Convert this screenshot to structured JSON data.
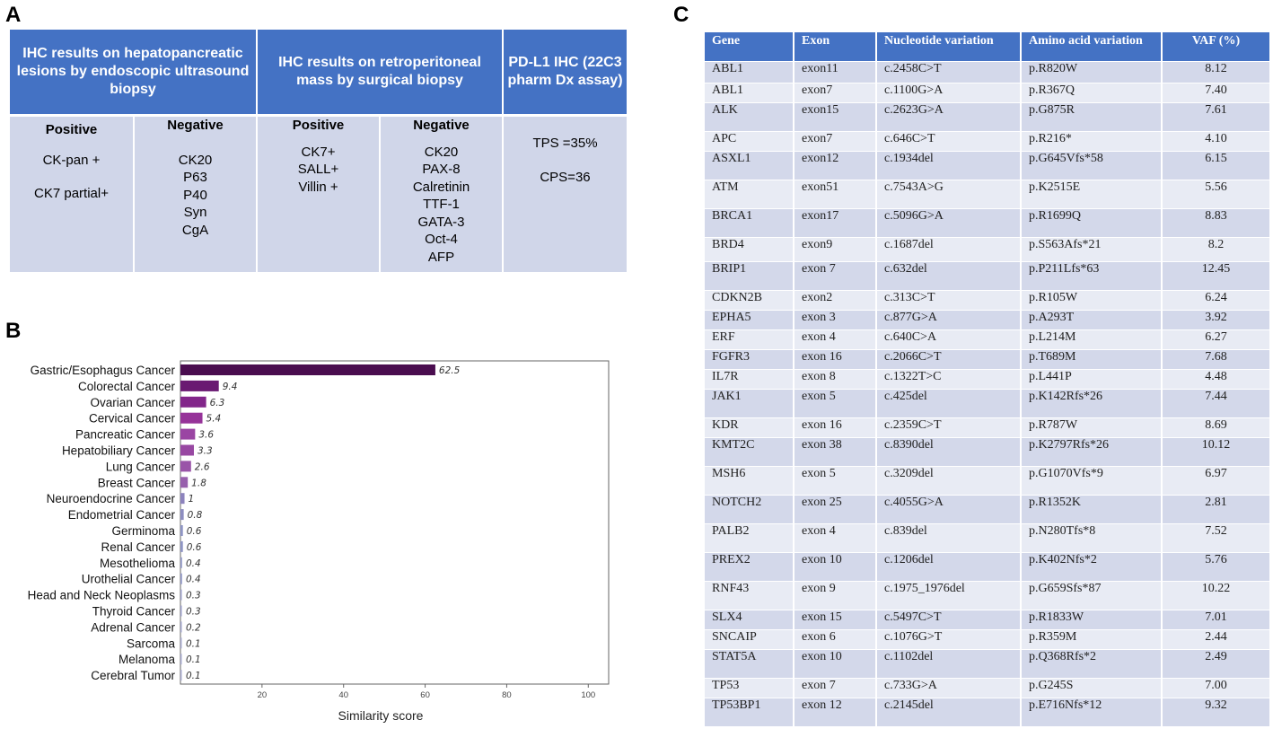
{
  "panel_letters": {
    "a": "A",
    "b": "B",
    "c": "C"
  },
  "panelA": {
    "headers": [
      "IHC results on hepatopancreatic lesions by endoscopic ultrasound biopsy",
      "IHC results on retroperitoneal mass by surgical biopsy",
      "PD-L1 IHC (22C3 pharm Dx assay)"
    ],
    "columns": [
      {
        "title": "Positive",
        "items": [
          "CK-pan +",
          "CK7 partial+"
        ]
      },
      {
        "title": "Negative",
        "items": [
          "CK20",
          "P63",
          "P40",
          "Syn",
          "CgA"
        ]
      },
      {
        "title": "Positive",
        "items": [
          "CK7+",
          "SALL+",
          "Villin +"
        ]
      },
      {
        "title": "Negative",
        "items": [
          "CK20",
          "PAX-8",
          "Calretinin",
          "TTF-1",
          "GATA-3",
          "Oct-4",
          "AFP"
        ]
      },
      {
        "title": "",
        "items": [
          "TPS =35%",
          "CPS=36"
        ]
      }
    ]
  },
  "chart_data": {
    "type": "bar",
    "orientation": "horizontal",
    "title": "",
    "xlabel": "Similarity score",
    "ylabel": "",
    "xlim": [
      0,
      105
    ],
    "xticks": [
      20,
      40,
      60,
      80,
      100
    ],
    "grid": false,
    "categories": [
      "Gastric/Esophagus Cancer",
      "Colorectal Cancer",
      "Ovarian Cancer",
      "Cervical Cancer",
      "Pancreatic Cancer",
      "Hepatobiliary Cancer",
      "Lung Cancer",
      "Breast Cancer",
      "Neuroendocrine Cancer",
      "Endometrial Cancer",
      "Germinoma",
      "Renal Cancer",
      "Mesothelioma",
      "Urothelial Cancer",
      "Head and Neck Neoplasms",
      "Thyroid Cancer",
      "Adrenal Cancer",
      "Sarcoma",
      "Melanoma",
      "Cerebral Tumor"
    ],
    "values": [
      62.5,
      9.4,
      6.3,
      5.4,
      3.6,
      3.3,
      2.6,
      1.8,
      1,
      0.8,
      0.6,
      0.6,
      0.4,
      0.4,
      0.3,
      0.3,
      0.2,
      0.1,
      0.1,
      0.1
    ],
    "colors": [
      "#4a0d4f",
      "#6a1a72",
      "#82268a",
      "#963399",
      "#9a45a3",
      "#9848a2",
      "#9a55a8",
      "#9860ad",
      "#8d83bd",
      "#8d8dc0",
      "#8f95c4",
      "#8f95c4",
      "#9399c6",
      "#9399c6",
      "#9a9ec8",
      "#9a9ec8",
      "#a0a3ca",
      "#a6a8cc",
      "#a6a8cc",
      "#a6a8cc"
    ]
  },
  "panelC": {
    "headers": [
      "Gene",
      "Exon",
      "Nucleotide variation",
      "Amino acid variation",
      "VAF (%)"
    ],
    "rows": [
      [
        "ABL1",
        "exon11",
        "c.2458C>T",
        "p.R820W",
        "8.12"
      ],
      [
        "ABL1",
        "exon7",
        "c.1100G>A",
        "p.R367Q",
        "7.40"
      ],
      [
        "ALK",
        "exon15",
        "c.2623G>A",
        "p.G875R",
        "7.61"
      ],
      [
        "APC",
        "exon7",
        "c.646C>T",
        "p.R216*",
        "4.10"
      ],
      [
        "ASXL1",
        "exon12",
        "c.1934del",
        "p.G645Vfs*58",
        "6.15"
      ],
      [
        "ATM",
        "exon51",
        "c.7543A>G",
        "p.K2515E",
        "5.56"
      ],
      [
        "BRCA1",
        "exon17",
        "c.5096G>A",
        "p.R1699Q",
        "8.83"
      ],
      [
        "BRD4",
        "exon9",
        "c.1687del",
        "p.S563Afs*21",
        "8.2"
      ],
      [
        "BRIP1",
        "exon 7",
        "c.632del",
        "p.P211Lfs*63",
        "12.45"
      ],
      [
        "CDKN2B",
        "exon2",
        "c.313C>T",
        "p.R105W",
        "6.24"
      ],
      [
        "EPHA5",
        "exon 3",
        "c.877G>A",
        "p.A293T",
        "3.92"
      ],
      [
        "ERF",
        "exon 4",
        "c.640C>A",
        "p.L214M",
        "6.27"
      ],
      [
        "FGFR3",
        "exon 16",
        "c.2066C>T",
        "p.T689M",
        "7.68"
      ],
      [
        "IL7R",
        "exon 8",
        "c.1322T>C",
        "p.L441P",
        "4.48"
      ],
      [
        "JAK1",
        "exon 5",
        "c.425del",
        "p.K142Rfs*26",
        "7.44"
      ],
      [
        "KDR",
        "exon 16",
        "c.2359C>T",
        "p.R787W",
        "8.69"
      ],
      [
        "KMT2C",
        "exon 38",
        "c.8390del",
        "p.K2797Rfs*26",
        "10.12"
      ],
      [
        "MSH6",
        "exon 5",
        "c.3209del",
        "p.G1070Vfs*9",
        "6.97"
      ],
      [
        "NOTCH2",
        "exon 25",
        "c.4055G>A",
        "p.R1352K",
        "2.81"
      ],
      [
        "PALB2",
        "exon 4",
        "c.839del",
        "p.N280Tfs*8",
        "7.52"
      ],
      [
        "PREX2",
        "exon 10",
        "c.1206del",
        "p.K402Nfs*2",
        "5.76"
      ],
      [
        "RNF43",
        "exon 9",
        "c.1975_1976del",
        "p.G659Sfs*87",
        "10.22"
      ],
      [
        "SLX4",
        "exon 15",
        "c.5497C>T",
        "p.R1833W",
        "7.01"
      ],
      [
        "SNCAIP",
        "exon 6",
        "c.1076G>T",
        "p.R359M",
        "2.44"
      ],
      [
        "STAT5A",
        "exon 10",
        "c.1102del",
        "p.Q368Rfs*2",
        "2.49"
      ],
      [
        "TP53",
        "exon 7",
        "c.733G>A",
        "p.G245S",
        "7.00"
      ],
      [
        "TP53BP1",
        "exon 12",
        "c.2145del",
        "p.E716Nfs*12",
        "9.32"
      ]
    ]
  }
}
